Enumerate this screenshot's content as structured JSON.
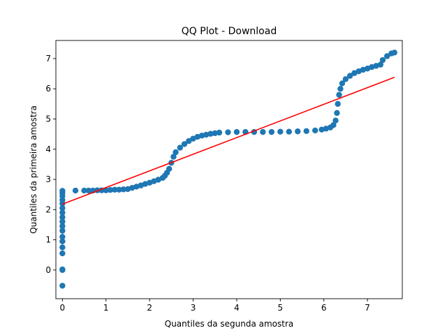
{
  "chart_data": {
    "type": "scatter",
    "title": "QQ Plot - Download",
    "xlabel": "Quantiles da segunda amostra",
    "ylabel": "Quantiles da primeira amostra",
    "xlim": [
      -0.15,
      7.8
    ],
    "ylim": [
      -0.95,
      7.6
    ],
    "xticks": [
      0,
      1,
      2,
      3,
      4,
      5,
      6,
      7
    ],
    "yticks": [
      0,
      1,
      2,
      3,
      4,
      5,
      6,
      7
    ],
    "grid": false,
    "colors": {
      "points": "#1f77b4",
      "line": "#ff0000"
    },
    "series": [
      {
        "type": "scatter",
        "points": [
          [
            0,
            -0.52
          ],
          [
            0,
            0.0
          ],
          [
            0,
            0.02
          ],
          [
            0,
            0.55
          ],
          [
            0,
            0.75
          ],
          [
            0,
            0.95
          ],
          [
            0,
            1.1
          ],
          [
            0,
            1.3
          ],
          [
            0,
            1.45
          ],
          [
            0,
            1.6
          ],
          [
            0,
            1.75
          ],
          [
            0,
            1.9
          ],
          [
            0,
            2.05
          ],
          [
            0,
            2.2
          ],
          [
            0,
            2.32
          ],
          [
            0,
            2.45
          ],
          [
            0,
            2.55
          ],
          [
            0,
            2.62
          ],
          [
            0.3,
            2.63
          ],
          [
            0.5,
            2.63
          ],
          [
            0.6,
            2.63
          ],
          [
            0.7,
            2.63
          ],
          [
            0.8,
            2.64
          ],
          [
            0.9,
            2.64
          ],
          [
            1.0,
            2.64
          ],
          [
            1.1,
            2.65
          ],
          [
            1.2,
            2.66
          ],
          [
            1.3,
            2.66
          ],
          [
            1.4,
            2.67
          ],
          [
            1.5,
            2.68
          ],
          [
            1.6,
            2.72
          ],
          [
            1.7,
            2.76
          ],
          [
            1.8,
            2.8
          ],
          [
            1.9,
            2.85
          ],
          [
            2.0,
            2.89
          ],
          [
            2.1,
            2.94
          ],
          [
            2.2,
            2.99
          ],
          [
            2.3,
            3.05
          ],
          [
            2.35,
            3.12
          ],
          [
            2.4,
            3.22
          ],
          [
            2.45,
            3.35
          ],
          [
            2.5,
            3.55
          ],
          [
            2.55,
            3.75
          ],
          [
            2.6,
            3.9
          ],
          [
            2.7,
            4.05
          ],
          [
            2.8,
            4.17
          ],
          [
            2.9,
            4.27
          ],
          [
            3.0,
            4.35
          ],
          [
            3.1,
            4.41
          ],
          [
            3.2,
            4.45
          ],
          [
            3.3,
            4.48
          ],
          [
            3.4,
            4.51
          ],
          [
            3.5,
            4.53
          ],
          [
            3.6,
            4.55
          ],
          [
            3.8,
            4.56
          ],
          [
            4.0,
            4.57
          ],
          [
            4.2,
            4.57
          ],
          [
            4.4,
            4.57
          ],
          [
            4.6,
            4.57
          ],
          [
            4.8,
            4.57
          ],
          [
            5.0,
            4.58
          ],
          [
            5.2,
            4.58
          ],
          [
            5.4,
            4.59
          ],
          [
            5.6,
            4.6
          ],
          [
            5.8,
            4.62
          ],
          [
            5.95,
            4.65
          ],
          [
            6.05,
            4.68
          ],
          [
            6.15,
            4.72
          ],
          [
            6.22,
            4.8
          ],
          [
            6.27,
            4.95
          ],
          [
            6.3,
            5.2
          ],
          [
            6.32,
            5.5
          ],
          [
            6.35,
            5.8
          ],
          [
            6.38,
            6.0
          ],
          [
            6.42,
            6.18
          ],
          [
            6.5,
            6.32
          ],
          [
            6.6,
            6.43
          ],
          [
            6.7,
            6.52
          ],
          [
            6.8,
            6.58
          ],
          [
            6.9,
            6.63
          ],
          [
            7.0,
            6.67
          ],
          [
            7.1,
            6.72
          ],
          [
            7.2,
            6.76
          ],
          [
            7.3,
            6.8
          ],
          [
            7.35,
            6.95
          ],
          [
            7.45,
            7.08
          ],
          [
            7.55,
            7.17
          ],
          [
            7.62,
            7.2
          ]
        ]
      },
      {
        "type": "line",
        "points": [
          [
            0,
            2.18
          ],
          [
            7.62,
            6.38
          ]
        ]
      }
    ]
  }
}
